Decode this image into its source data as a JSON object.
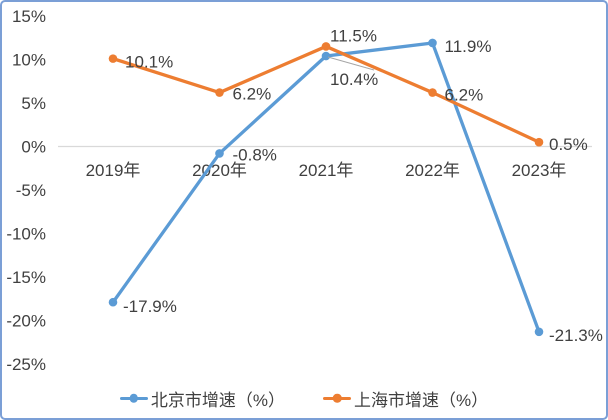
{
  "chart_data": {
    "type": "line",
    "title": "",
    "categories": [
      "2019年",
      "2020年",
      "2021年",
      "2022年",
      "2023年"
    ],
    "series": [
      {
        "name": "北京市增速（%）",
        "color": "#5B9BD5",
        "values": [
          -17.9,
          -0.8,
          10.4,
          11.9,
          -21.3
        ],
        "point_labels": [
          "-17.9%",
          "-0.8%",
          "10.4%",
          "11.9%",
          "-21.3%"
        ]
      },
      {
        "name": "上海市增速（%）",
        "color": "#ED7D31",
        "values": [
          10.1,
          6.2,
          11.5,
          6.2,
          0.5
        ],
        "point_labels": [
          "10.1%",
          "6.2%",
          "11.5%",
          "6.2%",
          "0.5%"
        ]
      }
    ],
    "y_axis": {
      "ticks": [
        15,
        10,
        5,
        0,
        -5,
        -10,
        -15,
        -20,
        -25
      ],
      "tick_labels": [
        "15%",
        "10%",
        "5%",
        "0%",
        "-5%",
        "-10%",
        "-15%",
        "-20%",
        "-25%"
      ],
      "ylim": [
        -25,
        15
      ]
    },
    "grid": "zero-line-only",
    "legend_position": "bottom"
  },
  "styles": {
    "series_blue": "#5B9BD5",
    "series_orange": "#ED7D31",
    "text_color": "#404040",
    "grid_color": "#D9D9D9",
    "leader_line_color": "#A6A6A6",
    "border_color": "#7B9FD6",
    "background": "#FFFFFF"
  }
}
